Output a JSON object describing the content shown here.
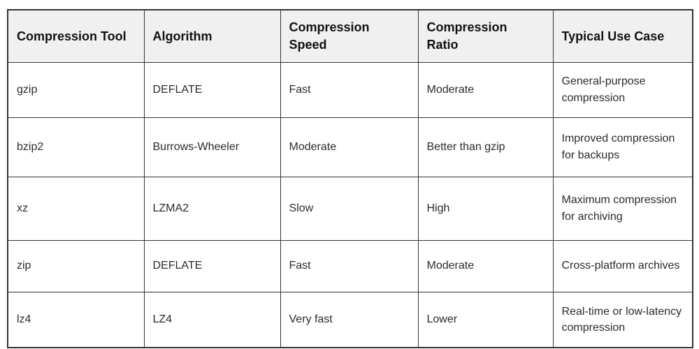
{
  "chart_data": {
    "type": "table",
    "columns": [
      "Compression Tool",
      "Algorithm",
      "Compression Speed",
      "Compression Ratio",
      "Typical Use Case"
    ],
    "rows": [
      [
        "gzip",
        "DEFLATE",
        "Fast",
        "Moderate",
        "General-purpose compression"
      ],
      [
        "bzip2",
        "Burrows-Wheeler",
        "Moderate",
        "Better than gzip",
        "Improved compression for backups"
      ],
      [
        "xz",
        "LZMA2",
        "Slow",
        "High",
        "Maximum compression for archiving"
      ],
      [
        "zip",
        "DEFLATE",
        "Fast",
        "Moderate",
        "Cross-platform archives"
      ],
      [
        "lz4",
        "LZ4",
        "Very fast",
        "Lower",
        "Real-time or low-latency compression"
      ]
    ],
    "layout": {
      "grid": "on",
      "header_position": "top"
    }
  },
  "colors": {
    "background": "#ffffff",
    "header_bg": "#f0f0f0",
    "border": "#333333",
    "header_text": "#111111",
    "body_text": "#2b2b2b"
  }
}
